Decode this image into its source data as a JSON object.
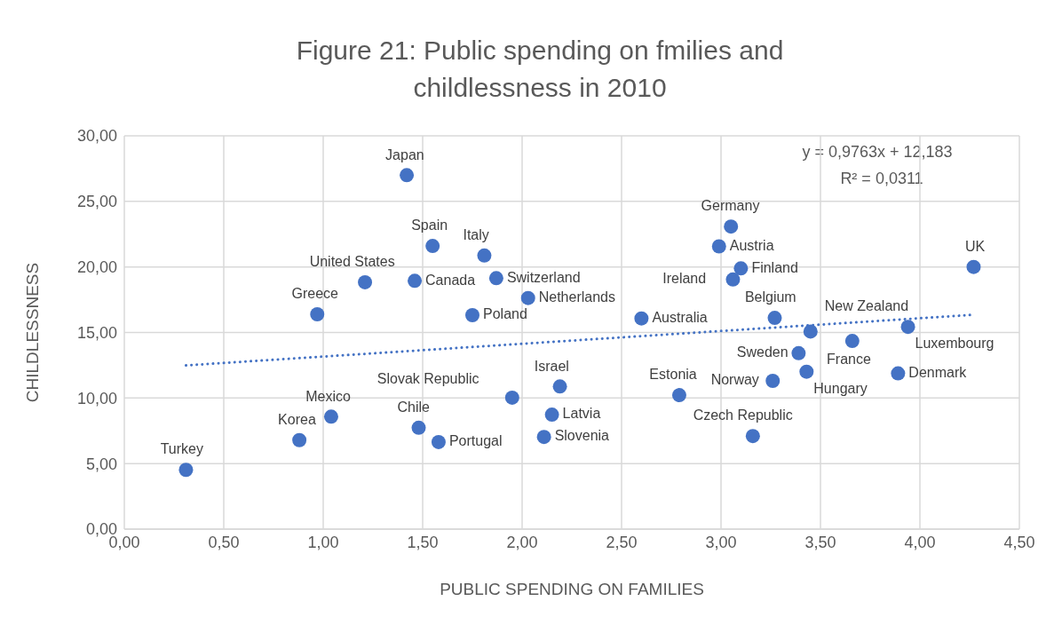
{
  "chart_data": {
    "type": "scatter",
    "title": "Figure 21: Public spending on fmilies and childlessness in 2010",
    "xlabel": "PUBLIC SPENDING ON FAMILIES",
    "ylabel": "CHILDLESSNESS",
    "series": [
      {
        "color": "#4472c4",
        "x": [
          0.31,
          0.88,
          1.04,
          1.48,
          1.58,
          1.95,
          2.19,
          2.15,
          2.11,
          2.79,
          1.42,
          1.55,
          1.81,
          1.46,
          1.21,
          0.97,
          1.87,
          2.03,
          1.75,
          2.6,
          3.05,
          2.99,
          3.1,
          3.06,
          3.27,
          3.45,
          3.39,
          3.66,
          3.94,
          3.43,
          3.26,
          3.89,
          3.16,
          4.27
        ],
        "values": [
          4.52,
          6.79,
          8.58,
          7.73,
          6.64,
          10.03,
          10.88,
          8.73,
          7.03,
          10.22,
          27.0,
          21.6,
          20.87,
          18.94,
          18.83,
          16.39,
          19.14,
          17.63,
          16.32,
          16.07,
          23.08,
          21.57,
          19.89,
          19.04,
          16.11,
          15.07,
          13.42,
          14.35,
          15.43,
          12.01,
          11.31,
          11.88,
          7.1,
          20.0
        ]
      },
      {
        "type": "line",
        "color": "#4472c4",
        "line_style": "dotted",
        "marker": "none",
        "x": [
          0.31,
          4.27
        ],
        "values": [
          12.49,
          16.35
        ]
      }
    ],
    "marker": "circle",
    "grid": true,
    "xlim": [
      0,
      4.5
    ],
    "xticks": [
      {
        "value": 0,
        "label": "0,00"
      },
      {
        "value": 0.5,
        "label": "0,50"
      },
      {
        "value": 1,
        "label": "1,00"
      },
      {
        "value": 1.5,
        "label": "1,50"
      },
      {
        "value": 2,
        "label": "2,00"
      },
      {
        "value": 2.5,
        "label": "2,50"
      },
      {
        "value": 3,
        "label": "3,00"
      },
      {
        "value": 3.5,
        "label": "3,50"
      },
      {
        "value": 4,
        "label": "4,00"
      },
      {
        "value": 4.5,
        "label": "4,50"
      }
    ],
    "ylim": [
      0,
      30
    ],
    "yticks": [
      {
        "value": 0,
        "label": "0,00"
      },
      {
        "value": 5,
        "label": "5,00"
      },
      {
        "value": 10,
        "label": "10,00"
      },
      {
        "value": 15,
        "label": "15,00"
      },
      {
        "value": 20,
        "label": "20,00"
      },
      {
        "value": 25,
        "label": "25,00"
      },
      {
        "value": 30,
        "label": "30,00"
      }
    ],
    "annotations": [
      "y = 0,9763x + 12,183",
      "R² = 0,0311",
      {
        "text": "Turkey",
        "x": 0.31,
        "y": 4.52
      },
      {
        "text": "Korea",
        "x": 0.88,
        "y": 6.79
      },
      {
        "text": "Mexico",
        "x": 1.04,
        "y": 8.58
      },
      {
        "text": "Chile",
        "x": 1.48,
        "y": 7.73
      },
      {
        "text": "Portugal",
        "x": 1.58,
        "y": 6.64
      },
      {
        "text": "Slovak Republic",
        "x": 1.95,
        "y": 10.03
      },
      {
        "text": "Israel",
        "x": 2.19,
        "y": 10.88
      },
      {
        "text": "Latvia",
        "x": 2.15,
        "y": 8.73
      },
      {
        "text": "Slovenia",
        "x": 2.11,
        "y": 7.03
      },
      {
        "text": "Estonia",
        "x": 2.79,
        "y": 10.22
      },
      {
        "text": "Japan",
        "x": 1.42,
        "y": 27.0
      },
      {
        "text": "Spain",
        "x": 1.55,
        "y": 21.6
      },
      {
        "text": "Italy",
        "x": 1.81,
        "y": 20.87
      },
      {
        "text": "Canada",
        "x": 1.46,
        "y": 18.94
      },
      {
        "text": "United States",
        "x": 1.21,
        "y": 18.83
      },
      {
        "text": "Greece",
        "x": 0.97,
        "y": 16.39
      },
      {
        "text": "Switzerland",
        "x": 1.87,
        "y": 19.14
      },
      {
        "text": "Netherlands",
        "x": 2.03,
        "y": 17.63
      },
      {
        "text": "Poland",
        "x": 1.75,
        "y": 16.32
      },
      {
        "text": "Australia",
        "x": 2.6,
        "y": 16.07
      },
      {
        "text": "Germany",
        "x": 3.05,
        "y": 23.08
      },
      {
        "text": "Austria",
        "x": 2.99,
        "y": 21.57
      },
      {
        "text": "Finland",
        "x": 3.1,
        "y": 19.89
      },
      {
        "text": "Ireland",
        "x": 3.06,
        "y": 19.04
      },
      {
        "text": "Belgium",
        "x": 3.27,
        "y": 16.11
      },
      {
        "text": "New Zealand",
        "x": 3.45,
        "y": 15.07
      },
      {
        "text": "Sweden",
        "x": 3.39,
        "y": 13.42
      },
      {
        "text": "France",
        "x": 3.66,
        "y": 14.35
      },
      {
        "text": "Luxembourg",
        "x": 3.94,
        "y": 15.43
      },
      {
        "text": "Hungary",
        "x": 3.43,
        "y": 12.01
      },
      {
        "text": "Norway",
        "x": 3.26,
        "y": 11.31
      },
      {
        "text": "Denmark",
        "x": 3.89,
        "y": 11.88
      },
      {
        "text": "Czech Republic",
        "x": 3.16,
        "y": 7.1
      },
      {
        "text": "UK",
        "x": 4.27,
        "y": 20.0
      }
    ]
  }
}
